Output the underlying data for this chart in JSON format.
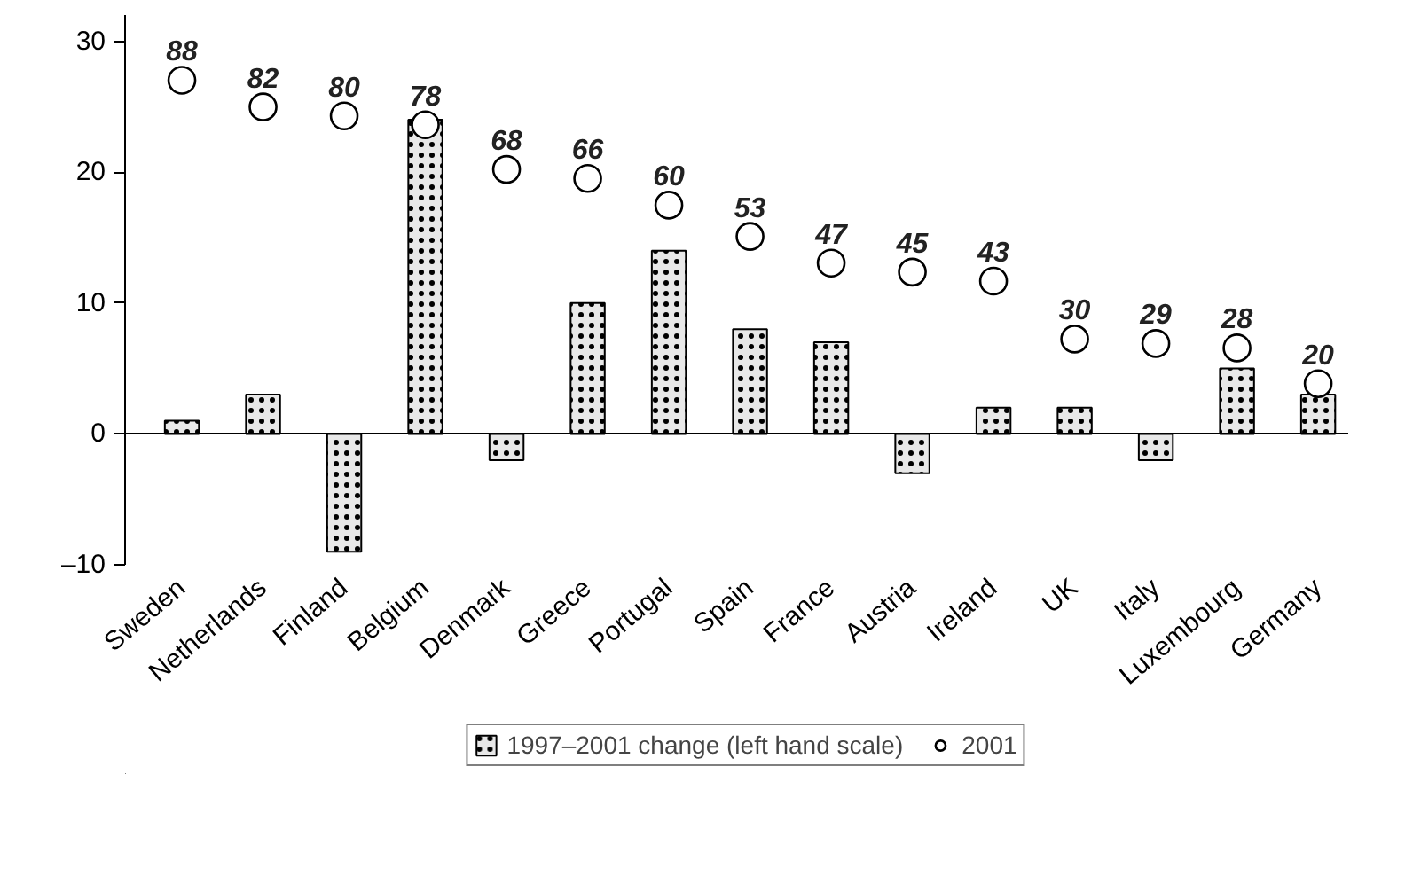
{
  "chart_data": {
    "type": "bar",
    "categories": [
      "Sweden",
      "Netherlands",
      "Finland",
      "Belgium",
      "Denmark",
      "Greece",
      "Portugal",
      "Spain",
      "France",
      "Austria",
      "Ireland",
      "UK",
      "Italy",
      "Luxembourg",
      "Germany"
    ],
    "series": [
      {
        "name": "1997–2001 change (left hand scale)",
        "color": "#e8e8e8",
        "values": [
          1,
          3,
          -9,
          24,
          -2,
          10,
          14,
          8,
          7,
          -3,
          2,
          2,
          -2,
          5,
          3
        ]
      },
      {
        "name": "2001",
        "type": "scatter",
        "axis": "y2",
        "color": "#000000",
        "data_labels": true,
        "values": [
          88,
          82,
          80,
          78,
          68,
          66,
          60,
          53,
          47,
          45,
          43,
          30,
          29,
          28,
          20
        ]
      }
    ],
    "ylim": [
      -10,
      32
    ],
    "yticks": [
      {
        "value": -10,
        "label": "–10"
      },
      0,
      10,
      20,
      30
    ],
    "y2lim": [
      -20.6,
      102.6
    ],
    "marker": "circle",
    "legend": "bottom"
  }
}
